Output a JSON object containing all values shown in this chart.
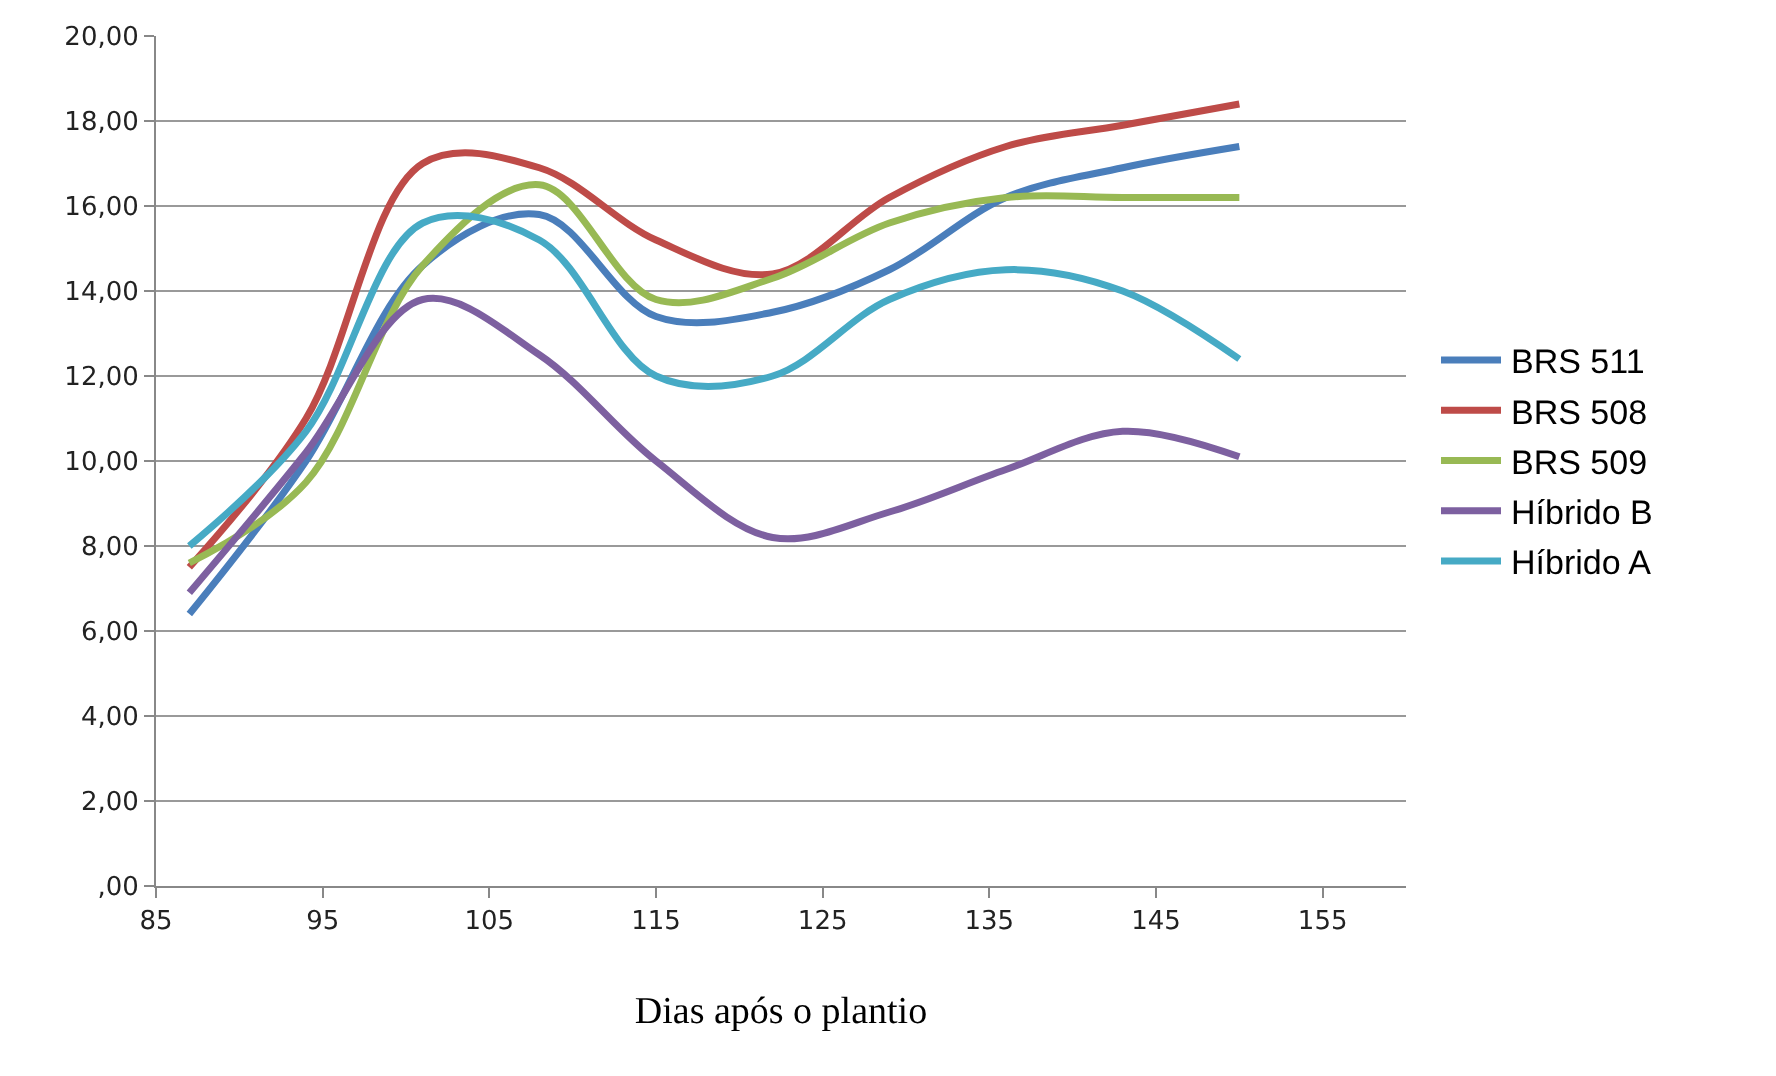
{
  "chart_data": {
    "type": "line",
    "xlabel": "Dias após o plantio",
    "x": [
      87,
      94,
      101,
      108,
      115,
      122,
      129,
      136,
      143,
      150
    ],
    "series": [
      {
        "name": "BRS 511",
        "color": "#4a7ebb",
        "values": [
          6.4,
          10.0,
          14.6,
          15.8,
          13.4,
          13.5,
          14.5,
          16.2,
          16.9,
          17.4
        ]
      },
      {
        "name": "BRS 508",
        "color": "#be4b48",
        "values": [
          7.5,
          11.0,
          17.0,
          16.9,
          15.2,
          14.4,
          16.2,
          17.4,
          17.9,
          18.4
        ]
      },
      {
        "name": "BRS 509",
        "color": "#98b954",
        "values": [
          7.6,
          9.5,
          14.6,
          16.5,
          13.8,
          14.3,
          15.6,
          16.2,
          16.2,
          16.2
        ]
      },
      {
        "name": "Híbrido B",
        "color": "#7d60a0",
        "values": [
          6.9,
          10.2,
          13.8,
          12.5,
          10.0,
          8.2,
          8.8,
          9.8,
          10.7,
          10.1
        ]
      },
      {
        "name": "Híbrido A",
        "color": "#46aac5",
        "values": [
          8.0,
          10.7,
          15.6,
          15.2,
          12.0,
          12.0,
          13.8,
          14.5,
          14.0,
          12.4
        ]
      }
    ],
    "xlim": [
      85,
      160
    ],
    "xticks": [
      85,
      95,
      105,
      115,
      125,
      135,
      145,
      155
    ],
    "ylim": [
      0,
      20
    ],
    "yticks": [
      {
        "value": 0,
        "label": ",00"
      },
      {
        "value": 2,
        "label": "2,00"
      },
      {
        "value": 4,
        "label": "4,00"
      },
      {
        "value": 6,
        "label": "6,00"
      },
      {
        "value": 8,
        "label": "8,00"
      },
      {
        "value": 10,
        "label": "10,00"
      },
      {
        "value": 12,
        "label": "12,00"
      },
      {
        "value": 14,
        "label": "14,00"
      },
      {
        "value": 16,
        "label": "16,00"
      },
      {
        "value": 18,
        "label": "18,00"
      },
      {
        "value": 20,
        "label": "20,00"
      }
    ],
    "grid": "y",
    "legend": "right",
    "marker": "none",
    "line_style": "solid"
  }
}
